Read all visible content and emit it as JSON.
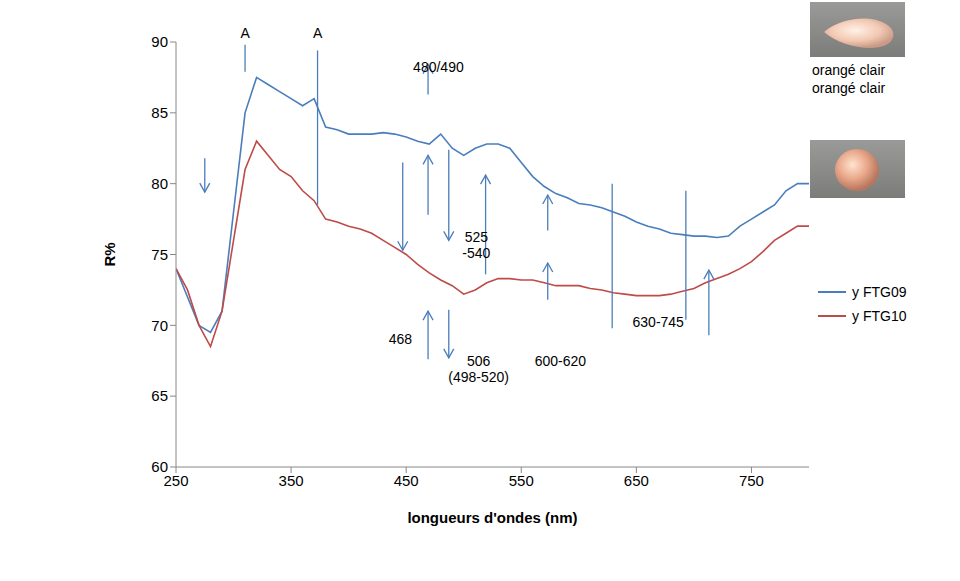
{
  "chart_data": {
    "type": "line",
    "xlabel": "longueurs d'ondes (nm)",
    "ylabel": "R%",
    "x": [
      250,
      260,
      270,
      280,
      290,
      300,
      310,
      320,
      330,
      340,
      350,
      360,
      370,
      380,
      390,
      400,
      410,
      420,
      430,
      440,
      450,
      460,
      470,
      480,
      490,
      500,
      510,
      520,
      530,
      540,
      550,
      560,
      570,
      580,
      590,
      600,
      610,
      620,
      630,
      640,
      650,
      660,
      670,
      680,
      690,
      700,
      710,
      720,
      730,
      740,
      750,
      760,
      770,
      780,
      790,
      800
    ],
    "series": [
      {
        "name": "y FTG09",
        "color": "#4a7ebb",
        "values": [
          74,
          72,
          70,
          69.5,
          71,
          78,
          85,
          87.5,
          87,
          86.5,
          86,
          85.5,
          86,
          84,
          83.8,
          83.5,
          83.5,
          83.5,
          83.6,
          83.5,
          83.3,
          83,
          82.8,
          83.5,
          82.5,
          82,
          82.5,
          82.8,
          82.8,
          82.5,
          81.5,
          80.5,
          79.8,
          79.3,
          79,
          78.6,
          78.5,
          78.3,
          78,
          77.7,
          77.3,
          77,
          76.8,
          76.5,
          76.4,
          76.3,
          76.3,
          76.2,
          76.3,
          77,
          77.5,
          78,
          78.5,
          79.5,
          80,
          80
        ]
      },
      {
        "name": "y FTG10",
        "color": "#be4b48",
        "values": [
          74,
          72.5,
          70,
          68.5,
          71,
          76,
          81,
          83,
          82,
          81,
          80.5,
          79.5,
          78.8,
          77.5,
          77.3,
          77,
          76.8,
          76.5,
          76,
          75.5,
          75,
          74.3,
          73.7,
          73.2,
          72.8,
          72.2,
          72.5,
          73,
          73.3,
          73.3,
          73.2,
          73.2,
          73,
          72.8,
          72.8,
          72.8,
          72.6,
          72.5,
          72.3,
          72.2,
          72.1,
          72.1,
          72.1,
          72.2,
          72.4,
          72.6,
          73,
          73.3,
          73.6,
          74,
          74.5,
          75.2,
          76,
          76.5,
          77,
          77
        ]
      }
    ],
    "xlim": [
      250,
      800
    ],
    "xticks": [
      250,
      350,
      450,
      550,
      650,
      750
    ],
    "ylim": [
      60,
      90
    ],
    "yticks": [
      60,
      65,
      70,
      75,
      80,
      85,
      90
    ],
    "grid": false,
    "legend": "right",
    "annotations": [
      {
        "text": "A",
        "x": 310,
        "y": 90.6
      },
      {
        "text": "A",
        "x": 373,
        "y": 90.6
      },
      {
        "text": "480/490",
        "x": 478,
        "y": 88.2
      },
      {
        "text": "468",
        "x": 445,
        "y": 69.0
      },
      {
        "text": "506",
        "x": 513,
        "y": 67.4
      },
      {
        "text": "(498-520)",
        "x": 513,
        "y": 66.3
      },
      {
        "text": "525 -540",
        "x": 511,
        "y": 76.2
      },
      {
        "text": "600-620",
        "x": 584,
        "y": 67.4
      },
      {
        "text": "630-745",
        "x": 669,
        "y": 70.2
      }
    ],
    "arrows": [
      {
        "x": 275,
        "y_from": 81.8,
        "y_to": 79.4
      },
      {
        "x": 469,
        "y_from": 86.3,
        "y_to": 88.4
      },
      {
        "x": 447,
        "y_from": 81.5,
        "y_to": 75.3
      },
      {
        "x": 469,
        "y_from": 77.8,
        "y_to": 82.0
      },
      {
        "x": 487,
        "y_from": 82.4,
        "y_to": 76.0
      },
      {
        "x": 519,
        "y_from": 73.6,
        "y_to": 80.6
      },
      {
        "x": 469,
        "y_from": 67.6,
        "y_to": 71.0
      },
      {
        "x": 487,
        "y_from": 71.1,
        "y_to": 67.7
      },
      {
        "x": 573,
        "y_from": 76.7,
        "y_to": 79.2
      },
      {
        "x": 573,
        "y_from": 71.8,
        "y_to": 74.4
      },
      {
        "x": 713,
        "y_from": 69.3,
        "y_to": 73.9
      }
    ],
    "lines": [
      {
        "x": 310,
        "y_from": 89.8,
        "y_to": 87.9
      },
      {
        "x": 373,
        "y_from": 89.4,
        "y_to": 78.5
      },
      {
        "x": 629,
        "y_from": 80.0,
        "y_to": 69.8
      },
      {
        "x": 693,
        "y_from": 79.5,
        "y_to": 70.4
      }
    ],
    "image_captions": [
      "orangé clair",
      "orangé clair"
    ]
  }
}
